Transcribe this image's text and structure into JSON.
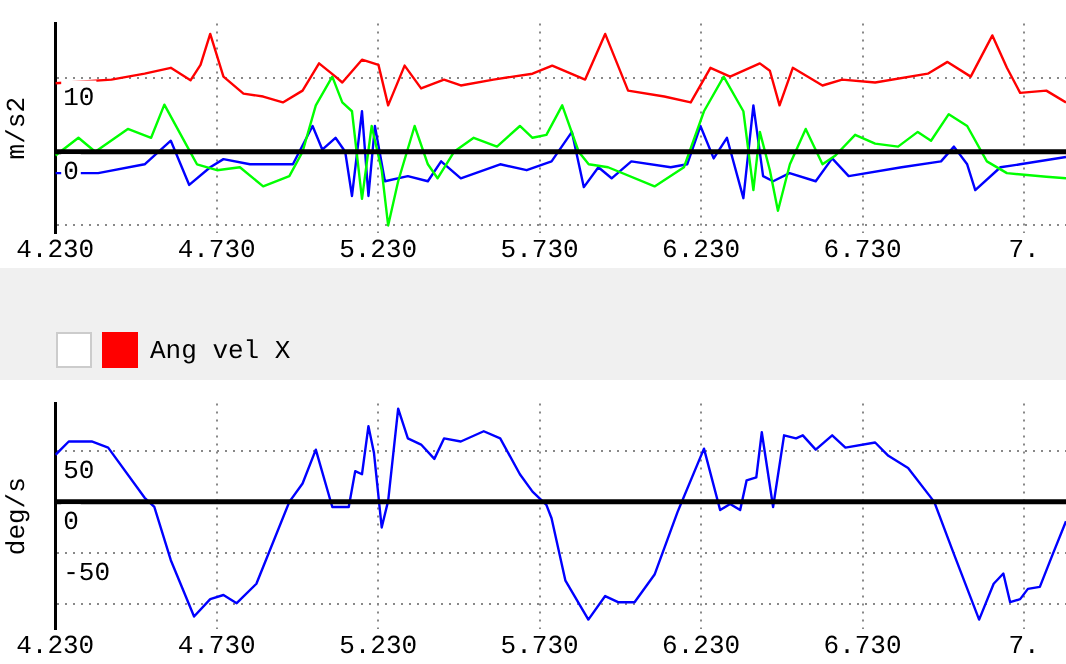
{
  "chart_data": [
    {
      "type": "line",
      "ylabel": "m/s2",
      "xlim": [
        4.23,
        7.36
      ],
      "ylim": [
        -11,
        17.4
      ],
      "xticks": [
        {
          "value": 4.23,
          "label": "4.230"
        },
        {
          "value": 4.73,
          "label": "4.730"
        },
        {
          "value": 5.23,
          "label": "5.230"
        },
        {
          "value": 5.73,
          "label": "5.730"
        },
        {
          "value": 6.23,
          "label": "6.230"
        },
        {
          "value": 6.73,
          "label": "6.730"
        },
        {
          "value": 7.23,
          "label": "7."
        }
      ],
      "yticks": [
        {
          "value": -10,
          "label": null
        },
        0,
        10
      ],
      "grid": true,
      "marker": "none",
      "legend": false,
      "ref_lines": [
        {
          "axis": "y",
          "value": 0,
          "color": "#000000"
        }
      ],
      "series": [
        {
          "color": "#ff0000",
          "x": [
            4.231,
            4.404,
            4.507,
            4.588,
            4.649,
            4.68,
            4.71,
            4.751,
            4.813,
            4.874,
            4.935,
            4.996,
            5.047,
            5.098,
            5.119,
            5.18,
            5.231,
            5.261,
            5.312,
            5.363,
            5.434,
            5.486,
            5.587,
            5.708,
            5.769,
            5.871,
            5.933,
            6.004,
            6.116,
            6.198,
            6.259,
            6.32,
            6.412,
            6.443,
            6.473,
            6.514,
            6.606,
            6.667,
            6.769,
            6.932,
            6.993,
            7.065,
            7.132,
            7.177,
            7.218,
            7.299,
            7.36
          ],
          "values": [
            9.3,
            9.8,
            10.6,
            11.4,
            9.7,
            11.8,
            16,
            10.2,
            7.9,
            7.5,
            6.7,
            8.3,
            12,
            10.2,
            9.4,
            12.5,
            11.8,
            6.3,
            11.7,
            8.6,
            9.8,
            9,
            9.8,
            10.6,
            11.7,
            9.8,
            16,
            8.3,
            7.5,
            6.7,
            11.4,
            10.2,
            12,
            11,
            6.3,
            11.4,
            9,
            9.8,
            9.4,
            10.6,
            12.2,
            10.2,
            15.8,
            11.4,
            8,
            8.3,
            6.7
          ]
        },
        {
          "color": "#00ff00",
          "x": [
            4.231,
            4.302,
            4.354,
            4.455,
            4.527,
            4.568,
            4.639,
            4.669,
            4.731,
            4.802,
            4.874,
            4.955,
            4.996,
            5.037,
            5.088,
            5.119,
            5.149,
            5.18,
            5.21,
            5.241,
            5.261,
            5.292,
            5.343,
            5.384,
            5.414,
            5.465,
            5.526,
            5.598,
            5.669,
            5.708,
            5.751,
            5.8,
            5.851,
            5.882,
            5.942,
            6.086,
            6.177,
            6.239,
            6.3,
            6.361,
            6.392,
            6.412,
            6.443,
            6.468,
            6.505,
            6.554,
            6.606,
            6.646,
            6.707,
            6.769,
            6.84,
            6.901,
            6.942,
            6.997,
            7.054,
            7.115,
            7.177,
            7.299,
            7.36
          ],
          "values": [
            -0.5,
            1.9,
            0,
            3.1,
            1.9,
            6.4,
            0.7,
            -1.7,
            -2.5,
            -2.1,
            -4.7,
            -3.3,
            0,
            6.3,
            10.2,
            6.7,
            5.5,
            -6.4,
            3.5,
            -2.5,
            -10,
            -4,
            3.5,
            -1.7,
            -3.6,
            0,
            1.9,
            0.7,
            3.5,
            1.9,
            2.3,
            6.3,
            0,
            -1.7,
            -2.1,
            -4.7,
            -2.1,
            5.5,
            10.2,
            5.5,
            -5.2,
            2.7,
            -2.5,
            -8,
            -1.7,
            3.1,
            -1.7,
            -0.5,
            2.3,
            1.1,
            0.7,
            2.7,
            1.5,
            5.1,
            3.5,
            -1.3,
            -2.9,
            -3.4,
            -3.6
          ]
        },
        {
          "color": "#0000ff",
          "x": [
            4.231,
            4.363,
            4.507,
            4.588,
            4.645,
            4.71,
            4.751,
            4.833,
            4.966,
            5.027,
            5.057,
            5.098,
            5.128,
            5.149,
            5.18,
            5.2,
            5.22,
            5.251,
            5.322,
            5.384,
            5.425,
            5.486,
            5.608,
            5.69,
            5.767,
            5.83,
            5.867,
            5.912,
            5.953,
            6.014,
            6.136,
            6.187,
            6.228,
            6.269,
            6.31,
            6.361,
            6.392,
            6.422,
            6.453,
            6.504,
            6.585,
            6.636,
            6.687,
            6.851,
            6.973,
            7.013,
            7.054,
            7.079,
            7.157,
            7.218,
            7.36
          ],
          "values": [
            -2.9,
            -2.9,
            -1.7,
            1.5,
            -4.5,
            -2.1,
            -1,
            -1.7,
            -1.7,
            3.5,
            0.3,
            1.9,
            0,
            -6,
            5.5,
            -6,
            3.5,
            -4,
            -3.3,
            -4,
            -1.3,
            -3.6,
            -1.7,
            -2.5,
            -1.3,
            2.7,
            -4.8,
            -2.1,
            -3.6,
            -1.3,
            -2.1,
            -1.7,
            3.5,
            -0.9,
            1.9,
            -6.3,
            6.3,
            -3.3,
            -4,
            -2.9,
            -4,
            -0.9,
            -3.3,
            -2.1,
            -1.3,
            0.7,
            -1.7,
            -5.2,
            -2.1,
            -1.7,
            -0.7
          ]
        }
      ]
    },
    {
      "type": "line",
      "ylabel": "deg/s",
      "xlim": [
        4.23,
        7.36
      ],
      "ylim": [
        -124,
        96
      ],
      "xticks": [
        {
          "value": 4.23,
          "label": "4.230"
        },
        {
          "value": 4.73,
          "label": "4.730"
        },
        {
          "value": 5.23,
          "label": "5.230"
        },
        {
          "value": 5.73,
          "label": "5.730"
        },
        {
          "value": 6.23,
          "label": "6.230"
        },
        {
          "value": 6.73,
          "label": "6.730"
        },
        {
          "value": 7.23,
          "label": "7."
        }
      ],
      "yticks": [
        {
          "value": -100,
          "label": null
        },
        -50,
        0,
        50
      ],
      "grid": true,
      "marker": "none",
      "legend": "top left",
      "ref_lines": [
        {
          "axis": "y",
          "value": 0,
          "color": "#000000"
        }
      ],
      "series": [
        {
          "name": "Ang vel X",
          "color": "#0000ff",
          "x": [
            4.231,
            4.272,
            4.343,
            4.394,
            4.507,
            4.537,
            4.588,
            4.66,
            4.71,
            4.751,
            4.792,
            4.853,
            4.955,
            4.996,
            5.037,
            5.088,
            5.139,
            5.159,
            5.18,
            5.2,
            5.217,
            5.241,
            5.261,
            5.292,
            5.322,
            5.363,
            5.404,
            5.434,
            5.486,
            5.557,
            5.608,
            5.669,
            5.708,
            5.751,
            5.767,
            5.81,
            5.881,
            5.933,
            5.973,
            6.024,
            6.086,
            6.157,
            6.239,
            6.289,
            6.32,
            6.351,
            6.371,
            6.401,
            6.418,
            6.453,
            6.487,
            6.524,
            6.545,
            6.585,
            6.636,
            6.677,
            6.769,
            6.81,
            6.871,
            6.952,
            7.013,
            7.091,
            7.136,
            7.166,
            7.187,
            7.218,
            7.242,
            7.279,
            7.319,
            7.36
          ],
          "values": [
            46,
            59,
            59,
            53,
            4,
            -5,
            -57,
            -112,
            -95,
            -91,
            -99,
            -80,
            0,
            18,
            51,
            -5,
            -5,
            30,
            27,
            74,
            48,
            -25,
            1,
            91,
            62,
            56,
            42,
            62,
            59,
            69,
            62,
            27,
            10,
            -3,
            -16,
            -77,
            -115,
            -92,
            -98,
            -98,
            -71,
            -10,
            52,
            -8,
            -2,
            -8,
            21,
            24,
            68,
            -5,
            65,
            62,
            65,
            51,
            65,
            53,
            58,
            45,
            33,
            0,
            -51,
            -115,
            -80,
            -70,
            -98,
            -95,
            -85,
            -83,
            -51,
            -19
          ]
        }
      ]
    }
  ]
}
